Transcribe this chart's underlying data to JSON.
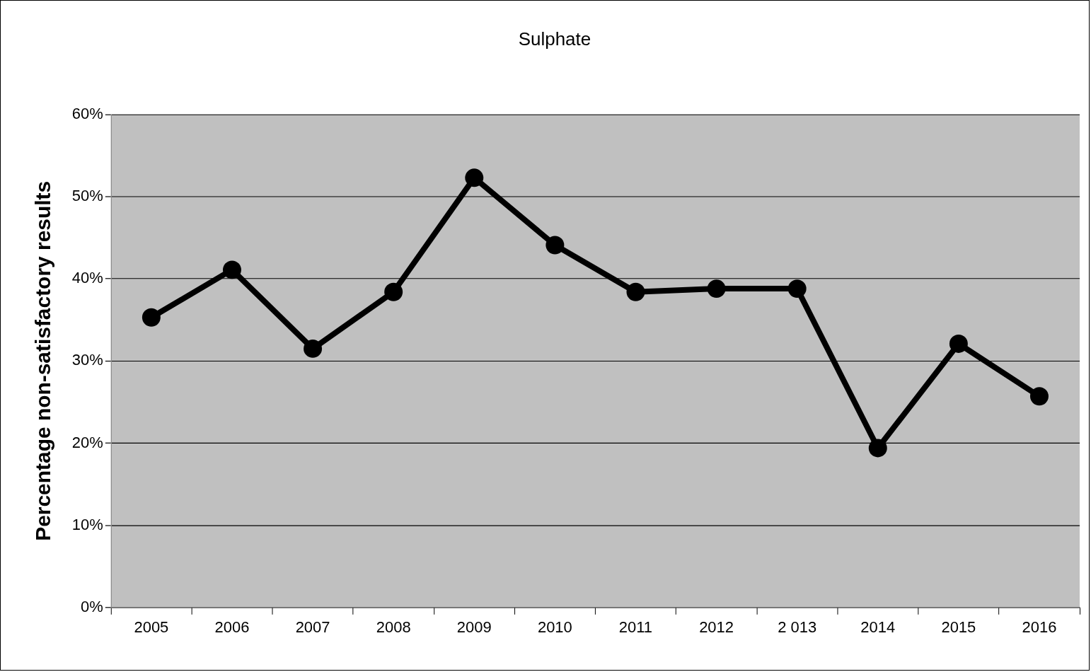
{
  "chart_data": {
    "type": "line",
    "title": "Sulphate",
    "ylabel": "Percentage non-satisfactory results",
    "categories": [
      "2005",
      "2006",
      "2007",
      "2008",
      "2009",
      "2010",
      "2011",
      "2012",
      "2 013",
      "2014",
      "2015",
      "2016"
    ],
    "series": [
      {
        "color": "#000000",
        "values": [
          35.3,
          41.1,
          31.5,
          38.4,
          52.3,
          44.1,
          38.4,
          38.8,
          38.8,
          19.4,
          32.1,
          25.7
        ]
      }
    ],
    "ylim": [
      0,
      60
    ],
    "yticks": [
      {
        "value": 0,
        "label": "0%"
      },
      {
        "value": 10,
        "label": "10%"
      },
      {
        "value": 20,
        "label": "20%"
      },
      {
        "value": 30,
        "label": "30%"
      },
      {
        "value": 40,
        "label": "40%"
      },
      {
        "value": 50,
        "label": "50%"
      },
      {
        "value": 60,
        "label": "60%"
      }
    ],
    "grid": "y",
    "legend": false,
    "marker": "circle",
    "line_style": "solid"
  }
}
